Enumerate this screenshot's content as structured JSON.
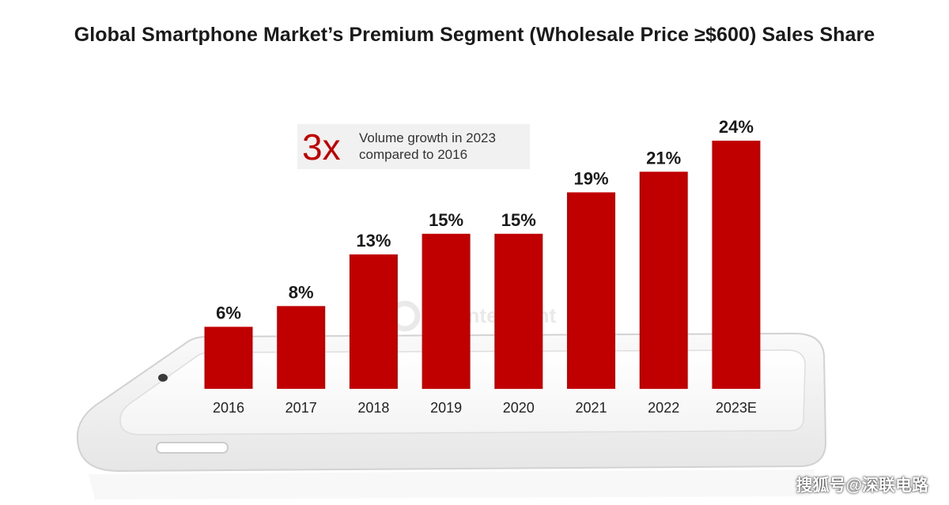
{
  "title": "Global Smartphone Market’s Premium Segment (Wholesale Price ≥$600) Sales Share",
  "callout": {
    "multiplier": "3x",
    "text_line1": "Volume growth in 2023",
    "text_line2": "compared to 2016"
  },
  "credit": "搜狐号@深联电路",
  "logo_text": "Counterpoint",
  "colors": {
    "bar": "#c00000",
    "callout_number": "#c00000",
    "text": "#1a1a1a"
  },
  "chart_data": {
    "type": "bar",
    "title": "Global Smartphone Market’s Premium Segment (Wholesale Price ≥$600) Sales Share",
    "categories": [
      "2016",
      "2017",
      "2018",
      "2019",
      "2020",
      "2021",
      "2022",
      "2023E"
    ],
    "values": [
      6,
      8,
      13,
      15,
      15,
      19,
      21,
      24
    ],
    "value_labels": [
      "6%",
      "8%",
      "13%",
      "15%",
      "15%",
      "19%",
      "21%",
      "24%"
    ],
    "unit": "%",
    "ylim": [
      0,
      24
    ],
    "grid": false,
    "legend": "none"
  }
}
